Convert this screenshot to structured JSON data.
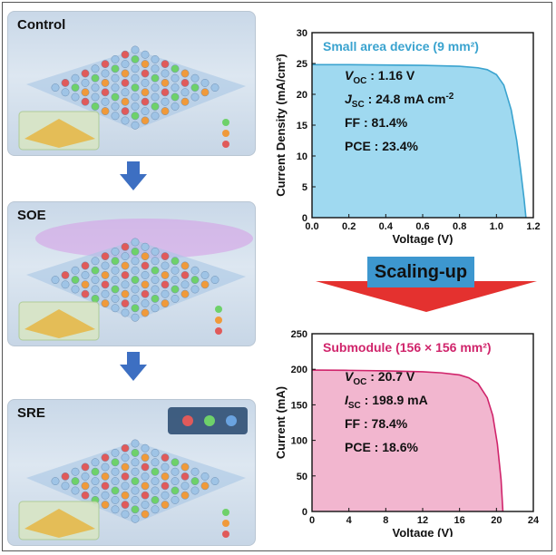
{
  "panels": {
    "control_label": "Control",
    "soe_label": "SOE",
    "sre_label": "SRE"
  },
  "scaling_label": "Scaling-up",
  "colors": {
    "small_fill": "#9fd9f0",
    "small_line": "#3aa3cf",
    "module_fill": "#f2b6cf",
    "module_line": "#d0246b",
    "arrow_blue": "#3d6fc2",
    "arrow_red": "#e4312f"
  },
  "chart_data": [
    {
      "type": "line",
      "title": "Small area device (9 mm²)",
      "xlabel": "Voltage (V)",
      "ylabel": "Current Density (mA/cm²)",
      "xlim": [
        0,
        1.2
      ],
      "ylim": [
        0,
        30
      ],
      "xticks": [
        "0.0",
        "0.2",
        "0.4",
        "0.6",
        "0.8",
        "1.0",
        "1.2"
      ],
      "yticks": [
        "0",
        "5",
        "10",
        "15",
        "20",
        "25",
        "30"
      ],
      "x": [
        0,
        0.2,
        0.4,
        0.6,
        0.8,
        0.9,
        0.95,
        1.0,
        1.04,
        1.08,
        1.11,
        1.13,
        1.15,
        1.16
      ],
      "y": [
        24.8,
        24.8,
        24.75,
        24.7,
        24.55,
        24.3,
        24.0,
        23.2,
        21.5,
        17.5,
        12.5,
        8.0,
        3.0,
        0
      ],
      "stats": [
        {
          "label": "V",
          "sub": "OC",
          "value": " : 1.16 V"
        },
        {
          "label": "J",
          "sub": "SC",
          "value": " : 24.8 mA cm",
          "sup": "-2"
        },
        {
          "label": "FF : 81.4%"
        },
        {
          "label": "PCE : 23.4%"
        }
      ]
    },
    {
      "type": "line",
      "title": "Submodule (156 × 156 mm²)",
      "xlabel": "Voltage (V)",
      "ylabel": "Current (mA)",
      "xlim": [
        0,
        24
      ],
      "ylim": [
        0,
        250
      ],
      "xticks": [
        "0",
        "4",
        "8",
        "12",
        "16",
        "20",
        "24"
      ],
      "yticks": [
        "0",
        "50",
        "100",
        "150",
        "200",
        "250"
      ],
      "x": [
        0,
        4,
        8,
        12,
        14,
        16,
        17,
        18,
        19,
        19.6,
        20.1,
        20.5,
        20.7
      ],
      "y": [
        198.9,
        198.5,
        197.8,
        196.5,
        195.0,
        192.0,
        188.0,
        180.0,
        160.0,
        135.0,
        95.0,
        45.0,
        0
      ],
      "stats": [
        {
          "label": "V",
          "sub": "OC",
          "value": " : 20.7 V"
        },
        {
          "label": "I",
          "sub": "SC",
          "value": " : 198.9 mA"
        },
        {
          "label": "FF : 78.4%"
        },
        {
          "label": "PCE : 18.6%"
        }
      ]
    }
  ]
}
